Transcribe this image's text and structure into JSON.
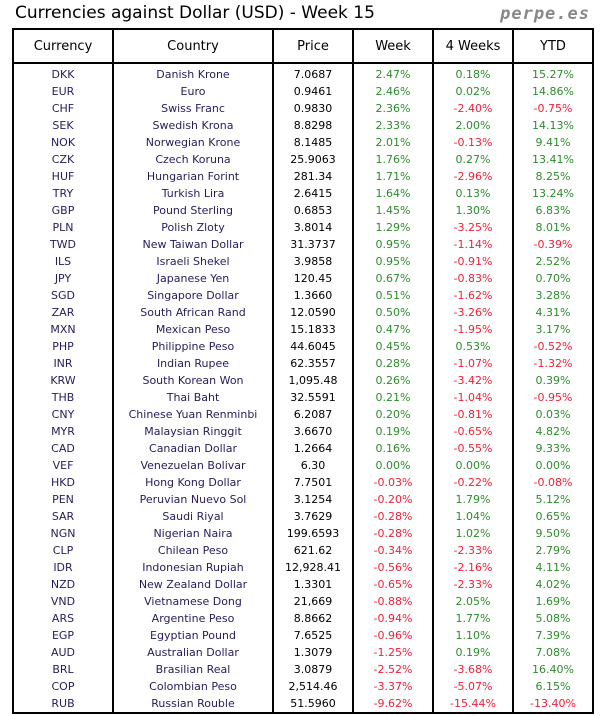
{
  "title": "Currencies against Dollar (USD) - Week 15",
  "brand": "perpe.es",
  "colors": {
    "positive": "#2e8b2e",
    "negative": "#f0203a"
  },
  "headers": [
    "Currency",
    "Country",
    "Price",
    "Week",
    "4 Weeks",
    "YTD"
  ],
  "rows": [
    [
      "DKK",
      "Danish Krone",
      "7.0687",
      "2.47%",
      "0.18%",
      "15.27%"
    ],
    [
      "EUR",
      "Euro",
      "0.9461",
      "2.46%",
      "0.02%",
      "14.86%"
    ],
    [
      "CHF",
      "Swiss Franc",
      "0.9830",
      "2.36%",
      "-2.40%",
      "-0.75%"
    ],
    [
      "SEK",
      "Swedish Krona",
      "8.8298",
      "2.33%",
      "2.00%",
      "14.13%"
    ],
    [
      "NOK",
      "Norwegian Krone",
      "8.1485",
      "2.01%",
      "-0.13%",
      "9.41%"
    ],
    [
      "CZK",
      "Czech Koruna",
      "25.9063",
      "1.76%",
      "0.27%",
      "13.41%"
    ],
    [
      "HUF",
      "Hungarian Forint",
      "281.34",
      "1.71%",
      "-2.96%",
      "8.25%"
    ],
    [
      "TRY",
      "Turkish Lira",
      "2.6415",
      "1.64%",
      "0.13%",
      "13.24%"
    ],
    [
      "GBP",
      "Pound Sterling",
      "0.6853",
      "1.45%",
      "1.30%",
      "6.83%"
    ],
    [
      "PLN",
      "Polish Zloty",
      "3.8014",
      "1.29%",
      "-3.25%",
      "8.01%"
    ],
    [
      "TWD",
      "New Taiwan Dollar",
      "31.3737",
      "0.95%",
      "-1.14%",
      "-0.39%"
    ],
    [
      "ILS",
      "Israeli Shekel",
      "3.9858",
      "0.95%",
      "-0.91%",
      "2.52%"
    ],
    [
      "JPY",
      "Japanese Yen",
      "120.45",
      "0.67%",
      "-0.83%",
      "0.70%"
    ],
    [
      "SGD",
      "Singapore Dollar",
      "1.3660",
      "0.51%",
      "-1.62%",
      "3.28%"
    ],
    [
      "ZAR",
      "South African Rand",
      "12.0590",
      "0.50%",
      "-3.26%",
      "4.31%"
    ],
    [
      "MXN",
      "Mexican Peso",
      "15.1833",
      "0.47%",
      "-1.95%",
      "3.17%"
    ],
    [
      "PHP",
      "Philippine Peso",
      "44.6045",
      "0.45%",
      "0.53%",
      "-0.52%"
    ],
    [
      "INR",
      "Indian Rupee",
      "62.3557",
      "0.28%",
      "-1.07%",
      "-1.32%"
    ],
    [
      "KRW",
      "South Korean Won",
      "1,095.48",
      "0.26%",
      "-3.42%",
      "0.39%"
    ],
    [
      "THB",
      "Thai Baht",
      "32.5591",
      "0.21%",
      "-1.04%",
      "-0.95%"
    ],
    [
      "CNY",
      "Chinese Yuan Renminbi",
      "6.2087",
      "0.20%",
      "-0.81%",
      "0.03%"
    ],
    [
      "MYR",
      "Malaysian Ringgit",
      "3.6670",
      "0.19%",
      "-0.65%",
      "4.82%"
    ],
    [
      "CAD",
      "Canadian Dollar",
      "1.2664",
      "0.16%",
      "-0.55%",
      "9.33%"
    ],
    [
      "VEF",
      "Venezuelan Bolivar",
      "6.30",
      "0.00%",
      "0.00%",
      "0.00%"
    ],
    [
      "HKD",
      "Hong Kong Dollar",
      "7.7501",
      "-0.03%",
      "-0.22%",
      "-0.08%"
    ],
    [
      "PEN",
      "Peruvian Nuevo Sol",
      "3.1254",
      "-0.20%",
      "1.79%",
      "5.12%"
    ],
    [
      "SAR",
      "Saudi Riyal",
      "3.7629",
      "-0.28%",
      "1.04%",
      "0.65%"
    ],
    [
      "NGN",
      "Nigerian Naira",
      "199.6593",
      "-0.28%",
      "1.02%",
      "9.50%"
    ],
    [
      "CLP",
      "Chilean Peso",
      "621.62",
      "-0.34%",
      "-2.33%",
      "2.79%"
    ],
    [
      "IDR",
      "Indonesian Rupiah",
      "12,928.41",
      "-0.56%",
      "-2.16%",
      "4.11%"
    ],
    [
      "NZD",
      "New Zealand Dollar",
      "1.3301",
      "-0.65%",
      "-2.33%",
      "4.02%"
    ],
    [
      "VND",
      "Vietnamese Dong",
      "21,669",
      "-0.88%",
      "2.05%",
      "1.69%"
    ],
    [
      "ARS",
      "Argentine Peso",
      "8.8662",
      "-0.94%",
      "1.77%",
      "5.08%"
    ],
    [
      "EGP",
      "Egyptian Pound",
      "7.6525",
      "-0.96%",
      "1.10%",
      "7.39%"
    ],
    [
      "AUD",
      "Australian Dollar",
      "1.3079",
      "-1.25%",
      "0.19%",
      "7.08%"
    ],
    [
      "BRL",
      "Brasilian Real",
      "3.0879",
      "-2.52%",
      "-3.68%",
      "16.40%"
    ],
    [
      "COP",
      "Colombian Peso",
      "2,514.46",
      "-3.37%",
      "-5.07%",
      "6.15%"
    ],
    [
      "RUB",
      "Russian Rouble",
      "51.5960",
      "-9.62%",
      "-15.44%",
      "-13.40%"
    ]
  ]
}
